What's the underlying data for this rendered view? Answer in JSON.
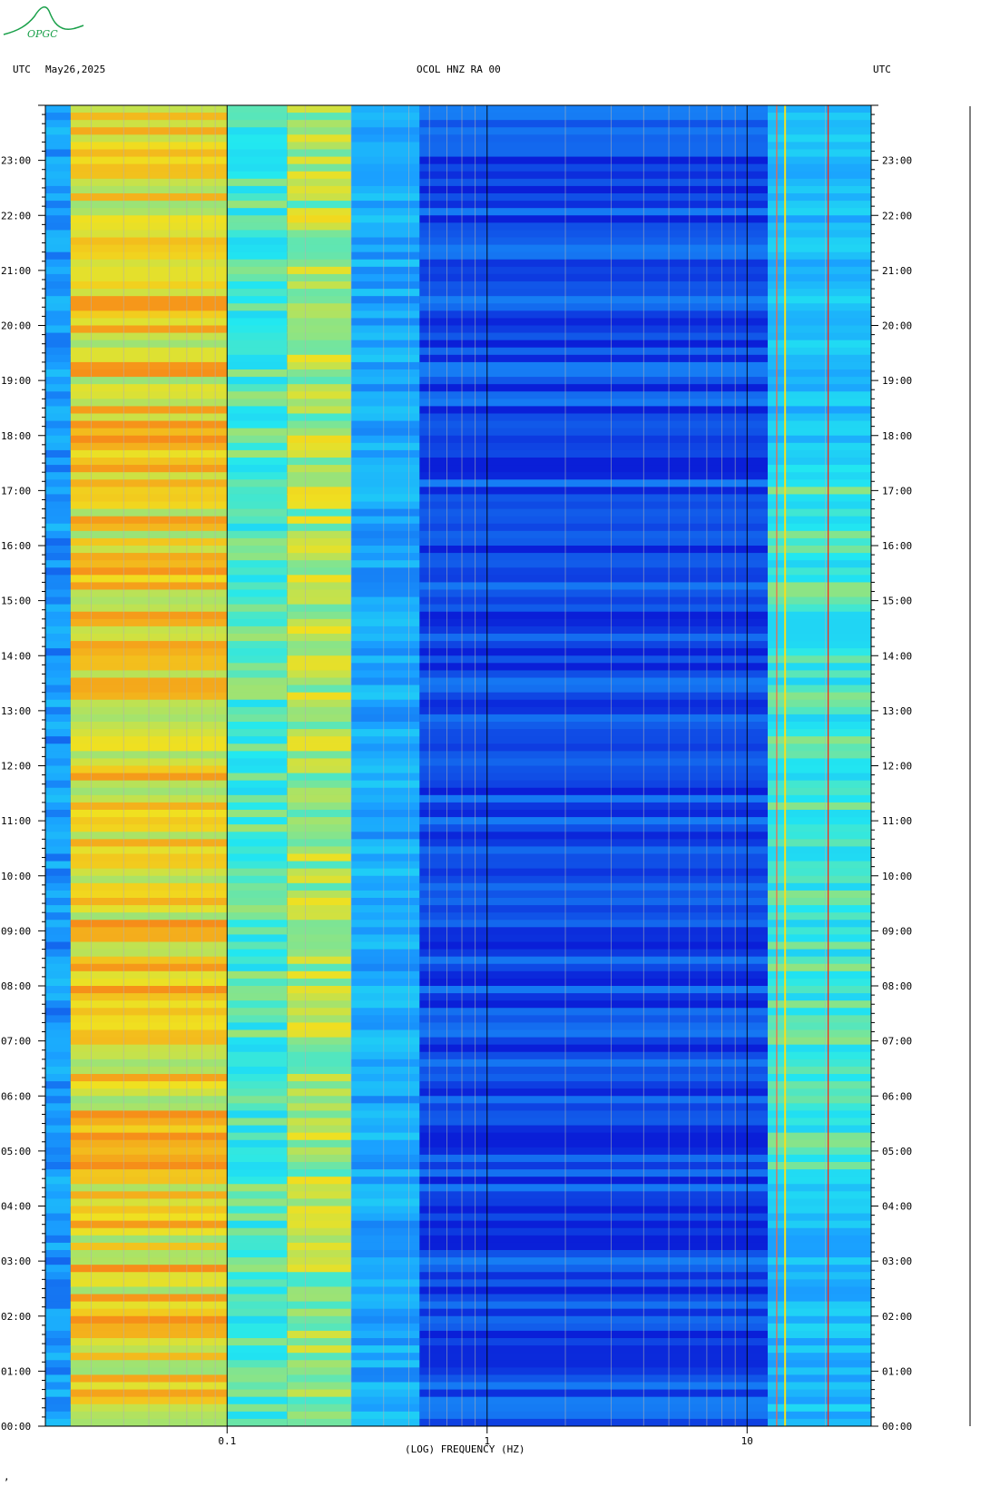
{
  "header": {
    "left_label": "UTC",
    "date": "May26,2025",
    "station": "OCOL HNZ RA 00",
    "right_label": "UTC"
  },
  "logo": {
    "text": "OPGC"
  },
  "footer": {
    "mark": ","
  },
  "colors": {
    "background": "#ffffff",
    "low": "#0a1fd8",
    "mid": "#1aa0ff",
    "high": "#22e8f0",
    "peak": "#f0e020",
    "hot": "#ff2010",
    "logo": "#1aa04a"
  },
  "chart_data": {
    "type": "heatmap",
    "title": "OCOL HNZ RA 00",
    "xlabel": "(LOG) FREQUENCY (HZ)",
    "ylabel": "UTC",
    "x_scale": "log",
    "xlim": [
      0.02,
      30
    ],
    "x_ticks": [
      {
        "value": 0.1,
        "label": "0.1"
      },
      {
        "value": 1,
        "label": "1"
      },
      {
        "value": 10,
        "label": "10"
      }
    ],
    "y_ticks": [
      "00:00",
      "01:00",
      "02:00",
      "03:00",
      "04:00",
      "05:00",
      "06:00",
      "07:00",
      "08:00",
      "09:00",
      "10:00",
      "11:00",
      "12:00",
      "13:00",
      "14:00",
      "15:00",
      "16:00",
      "17:00",
      "18:00",
      "19:00",
      "20:00",
      "21:00",
      "22:00",
      "23:00"
    ],
    "ylim_hours": [
      0,
      24
    ],
    "grid": true,
    "energy_bands": [
      {
        "f_min": 0.02,
        "f_max": 0.025,
        "level": 0.25
      },
      {
        "f_min": 0.025,
        "f_max": 0.1,
        "level": 0.75
      },
      {
        "f_min": 0.1,
        "f_max": 0.17,
        "level": 0.55
      },
      {
        "f_min": 0.17,
        "f_max": 0.3,
        "level": 0.65
      },
      {
        "f_min": 0.3,
        "f_max": 0.55,
        "level": 0.3
      },
      {
        "f_min": 0.55,
        "f_max": 12,
        "level": 0.08
      },
      {
        "f_min": 12,
        "f_max": 30,
        "level": 0.35
      }
    ],
    "tonal_lines_hz": [
      13,
      14,
      20.5
    ]
  }
}
